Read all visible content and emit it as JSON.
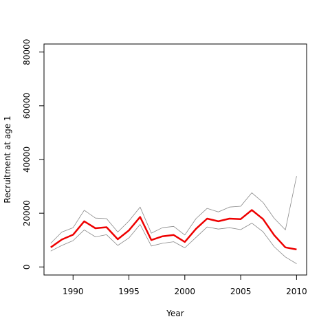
{
  "chart_data": {
    "type": "line",
    "xlabel": "Year",
    "ylabel": "Recruitment at age 1",
    "xlim": [
      1987.4,
      2010.9
    ],
    "ylim": [
      -3000,
      83000
    ],
    "x_ticks": [
      1990,
      1995,
      2000,
      2005,
      2010
    ],
    "x_tick_labels": [
      "1990",
      "1995",
      "2000",
      "2005",
      "2010"
    ],
    "y_ticks": [
      0,
      20000,
      40000,
      60000,
      80000
    ],
    "y_tick_labels": [
      "0",
      "20000",
      "40000",
      "60000",
      "80000"
    ],
    "grid": false,
    "x": [
      1988,
      1989,
      1990,
      1991,
      1992,
      1993,
      1994,
      1995,
      1996,
      1997,
      1998,
      1999,
      2000,
      2001,
      2002,
      2003,
      2004,
      2005,
      2006,
      2007,
      2008,
      2009,
      2010
    ],
    "series": [
      {
        "role": "estimate",
        "color": "#ee0000",
        "values": [
          7300,
          10200,
          12000,
          17000,
          14400,
          14800,
          10300,
          13600,
          18600,
          10000,
          11400,
          11900,
          9300,
          14200,
          18000,
          17000,
          18000,
          17800,
          21200,
          17800,
          11800,
          7300,
          6500
        ]
      },
      {
        "role": "upper",
        "color": "#888888",
        "values": [
          8800,
          13000,
          14600,
          21100,
          18200,
          18000,
          13000,
          17100,
          22300,
          12600,
          14600,
          15100,
          11900,
          18000,
          21800,
          20500,
          22300,
          22600,
          27600,
          24000,
          18100,
          13800,
          33800
        ]
      },
      {
        "role": "lower",
        "color": "#888888",
        "values": [
          5900,
          8000,
          9800,
          13800,
          11200,
          12000,
          8000,
          10800,
          15800,
          7800,
          8800,
          9400,
          7100,
          11000,
          14900,
          14100,
          14600,
          13900,
          16300,
          13100,
          7500,
          3700,
          1200
        ]
      }
    ]
  }
}
